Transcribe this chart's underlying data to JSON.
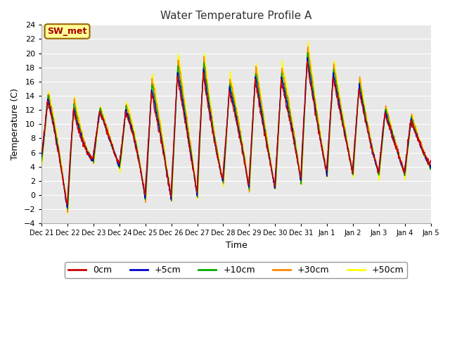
{
  "title": "Water Temperature Profile A",
  "xlabel": "Time",
  "ylabel": "Temperature (C)",
  "ylim": [
    -4,
    24
  ],
  "yticks": [
    -4,
    -2,
    0,
    2,
    4,
    6,
    8,
    10,
    12,
    14,
    16,
    18,
    20,
    22,
    24
  ],
  "plot_bg_color": "#e8e8e8",
  "fig_bg_color": "#ffffff",
  "series_colors": {
    "0cm": "#cc0000",
    "+5cm": "#0000cc",
    "+10cm": "#00aa00",
    "+30cm": "#ff8800",
    "+50cm": "#ffff00"
  },
  "annotation_text": "SW_met",
  "annotation_bg": "#ffff99",
  "annotation_fg": "#aa0000",
  "annotation_border": "#996600",
  "grid_color": "#ffffff",
  "tick_labels": [
    "Dec 21",
    "Dec 22",
    "Dec 23",
    "Dec 24",
    "Dec 25",
    "Dec 26",
    "Dec 27",
    "Dec 28",
    "Dec 29",
    "Dec 30",
    "Dec 31",
    "Jan 1",
    "Jan 2",
    "Jan 3",
    "Jan 4",
    "Jan 5"
  ]
}
